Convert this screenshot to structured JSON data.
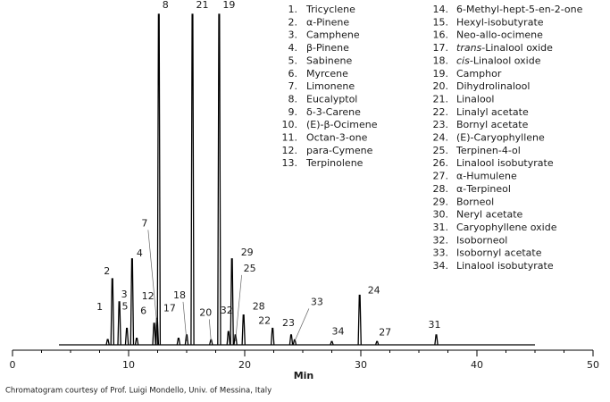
{
  "chart_data": {
    "type": "chromatogram",
    "x_label": "Min",
    "credit": "Chromatogram courtesy of Prof. Luigi Mondello, Univ. of Messina, Italy",
    "xlim": [
      0,
      50
    ],
    "xticks": [
      0,
      10,
      20,
      30,
      40,
      50
    ],
    "ylim": [
      0,
      100
    ],
    "trace_range": [
      4,
      45
    ],
    "color": "#000000",
    "peaks": [
      {
        "label": "1",
        "x": 8.2,
        "height": 1.6
      },
      {
        "label": "2",
        "x": 8.6,
        "height": 20
      },
      {
        "label": "3",
        "x": 9.2,
        "height": 13
      },
      {
        "label": "4",
        "x": 10.3,
        "height": 26
      },
      {
        "label": "5",
        "x": 9.85,
        "height": 5
      },
      {
        "label": "6",
        "x": 10.7,
        "height": 2
      },
      {
        "label": "7",
        "x": 12.45,
        "height": 8
      },
      {
        "label": "8",
        "x": 12.6,
        "height": 100
      },
      {
        "label": "12",
        "x": 12.2,
        "height": 6.5
      },
      {
        "label": "17",
        "x": 14.3,
        "height": 2
      },
      {
        "label": "18",
        "x": 15.0,
        "height": 3
      },
      {
        "label": "21",
        "x": 15.5,
        "height": 100
      },
      {
        "label": "19",
        "x": 17.8,
        "height": 100
      },
      {
        "label": "20",
        "x": 17.1,
        "height": 1.5
      },
      {
        "label": "32",
        "x": 18.6,
        "height": 4
      },
      {
        "label": "29",
        "x": 18.9,
        "height": 26
      },
      {
        "label": "25",
        "x": 19.2,
        "height": 3
      },
      {
        "label": "28",
        "x": 19.9,
        "height": 9
      },
      {
        "label": "22",
        "x": 22.4,
        "height": 5
      },
      {
        "label": "23",
        "x": 24.0,
        "height": 3
      },
      {
        "label": "33",
        "x": 24.3,
        "height": 1.5
      },
      {
        "label": "34",
        "x": 27.5,
        "height": 1
      },
      {
        "label": "24",
        "x": 29.9,
        "height": 15
      },
      {
        "label": "27",
        "x": 31.4,
        "height": 1
      },
      {
        "label": "31",
        "x": 36.5,
        "height": 3
      }
    ],
    "legend": [
      {
        "number": "1.",
        "name": "Tricyclene"
      },
      {
        "number": "2.",
        "name": "α-Pinene"
      },
      {
        "number": "3.",
        "name": "Camphene"
      },
      {
        "number": "4.",
        "name": "β-Pinene"
      },
      {
        "number": "5.",
        "name": "Sabinene"
      },
      {
        "number": "6.",
        "name": "Myrcene"
      },
      {
        "number": "7.",
        "name": "Limonene"
      },
      {
        "number": "8.",
        "name": "Eucalyptol"
      },
      {
        "number": "9.",
        "name": "δ-3-Carene"
      },
      {
        "number": "10.",
        "name": "(E)-β-Ocimene"
      },
      {
        "number": "11.",
        "name": "Octan-3-one"
      },
      {
        "number": "12.",
        "name": "para-Cymene"
      },
      {
        "number": "13.",
        "name": "Terpinolene"
      },
      {
        "number": "14.",
        "name": "6-Methyl-hept-5-en-2-one"
      },
      {
        "number": "15.",
        "name": "Hexyl-isobutyrate"
      },
      {
        "number": "16.",
        "name": "Neo-allo-ocimene"
      },
      {
        "number": "17.",
        "italic": "trans",
        "name": "-Linalool oxide"
      },
      {
        "number": "18.",
        "italic": "cis",
        "name": "-Linalool oxide"
      },
      {
        "number": "19.",
        "name": "Camphor"
      },
      {
        "number": "20.",
        "name": "Dihydrolinalool"
      },
      {
        "number": "21.",
        "name": "Linalool"
      },
      {
        "number": "22.",
        "name": "Linalyl acetate"
      },
      {
        "number": "23.",
        "name": "Bornyl acetate"
      },
      {
        "number": "24.",
        "name": "(E)-Caryophyllene"
      },
      {
        "number": "25.",
        "name": "Terpinen-4-ol"
      },
      {
        "number": "26.",
        "name": "Linalool isobutyrate"
      },
      {
        "number": "27.",
        "name": "α-Humulene"
      },
      {
        "number": "28.",
        "name": "α-Terpineol"
      },
      {
        "number": "29.",
        "name": "Borneol"
      },
      {
        "number": "30.",
        "name": "Neryl acetate"
      },
      {
        "number": "31.",
        "name": "Caryophyllene oxide"
      },
      {
        "number": "32.",
        "name": "Isoborneol"
      },
      {
        "number": "33.",
        "name": "Isobornyl acetate"
      },
      {
        "number": "34.",
        "name": "Linalool isobutyrate"
      }
    ]
  }
}
